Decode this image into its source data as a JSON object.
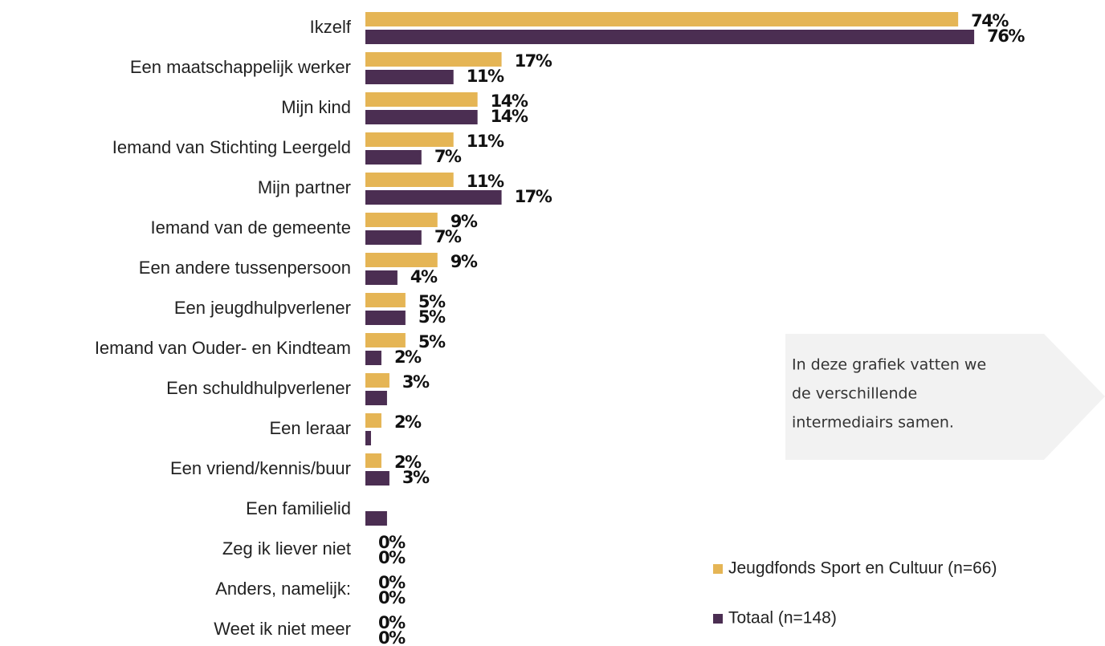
{
  "chart_data": {
    "type": "hbar",
    "categories": [
      "Ikzelf",
      "Een maatschappelijk werker",
      "Mijn kind",
      "Iemand van Stichting Leergeld",
      "Mijn partner",
      "Iemand van de gemeente",
      "Een andere tussenpersoon",
      "Een jeugdhulpverlener",
      "Iemand van Ouder- en Kindteam",
      "Een schuldhulpverlener",
      "Een leraar",
      "Een vriend/kennis/buur",
      "Een familielid",
      "Zeg ik liever niet",
      "Anders, namelijk:",
      "Weet ik niet meer"
    ],
    "series": [
      {
        "name": "Jeugdfonds Sport en Cultuur (n=66)",
        "color": "#e5b555",
        "values": [
          74,
          17,
          14,
          11,
          11,
          9,
          9,
          5,
          5,
          3,
          2,
          2,
          0,
          0,
          0,
          0
        ],
        "value_labels": [
          "74%",
          "17%",
          "14%",
          "11%",
          "11%",
          "9%",
          "9%",
          "5%",
          "5%",
          "3%",
          "2%",
          "2%",
          null,
          "0%",
          "0%",
          "0%"
        ]
      },
      {
        "name": "Totaal (n=148)",
        "color": "#4b2e52",
        "values": [
          76,
          11,
          14,
          7,
          17,
          7,
          4,
          5,
          2,
          2.7,
          0.7,
          3,
          2.7,
          0,
          0,
          0
        ],
        "value_labels": [
          "76%",
          "11%",
          "14%",
          "7%",
          "17%",
          "7%",
          "4%",
          "5%",
          "2%",
          null,
          null,
          "3%",
          null,
          "0%",
          "0%",
          "0%"
        ]
      }
    ],
    "xlim": [
      0,
      80
    ],
    "annotation": [
      "In deze grafiek vatten we",
      "de verschillende",
      "intermediairs samen."
    ]
  }
}
